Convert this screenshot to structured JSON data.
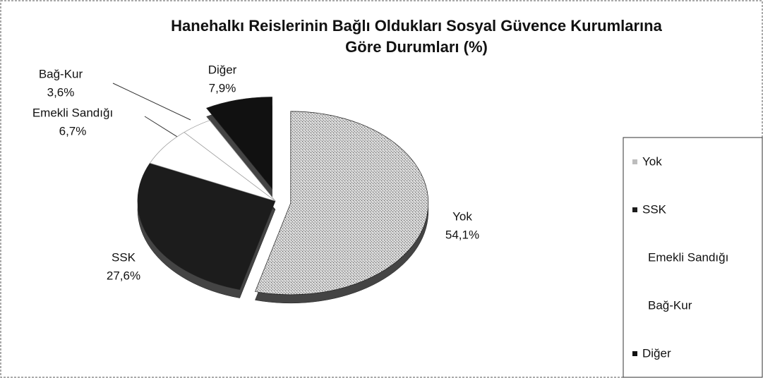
{
  "chart_data": {
    "type": "pie",
    "title": "Hanehalkı Reislerinin Bağlı Oldukları Sosyal Güvence Kurumlarına Göre Durumları (%)",
    "categories": [
      "Yok",
      "SSK",
      "Emekli Sandığı",
      "Bağ-Kur",
      "Diğer"
    ],
    "values": [
      54.1,
      27.6,
      6.7,
      3.6,
      7.9
    ],
    "value_labels": [
      "54,1%",
      "27,6%",
      "6,7%",
      "3,6%",
      "7,9%"
    ],
    "colors": [
      "#bdbdbd",
      "#1c1c1c",
      "#ffffff",
      "#ffffff",
      "#111111"
    ],
    "legend": "right"
  }
}
